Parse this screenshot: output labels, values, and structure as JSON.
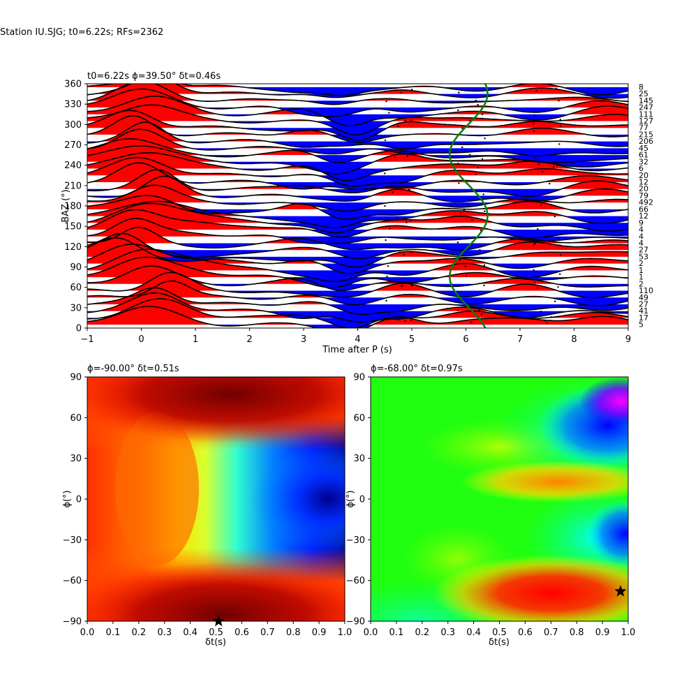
{
  "suptitle": "Station IU.SJG; t0=6.22s; RFs=2362",
  "chart_data": [
    {
      "type": "line",
      "panel": "receiver-functions",
      "title": "t0=6.22s ϕ=39.50° δt=0.46s",
      "xlabel": "Time after P (s)",
      "ylabel": "BAZ (°)",
      "xlim": [
        -1,
        9
      ],
      "ylim": [
        0,
        360
      ],
      "xticks": [
        "−1",
        "0",
        "1",
        "2",
        "3",
        "4",
        "5",
        "6",
        "7",
        "8",
        "9"
      ],
      "yticks": [
        "0",
        "30",
        "60",
        "90",
        "120",
        "150",
        "180",
        "210",
        "240",
        "270",
        "300",
        "330",
        "360"
      ],
      "counts": [
        "5",
        "17",
        "41",
        "27",
        "49",
        "110",
        "2",
        "1",
        "1",
        "2",
        "53",
        "27",
        "4",
        "4",
        "4",
        "9",
        "12",
        "66",
        "492",
        "79",
        "20",
        "12",
        "20",
        "6",
        "32",
        "61",
        "45",
        "206",
        "215",
        "77",
        "127",
        "111",
        "247",
        "145",
        "25",
        "8"
      ],
      "positive_color": "#ff0000",
      "negative_color": "#0000ff",
      "trace_color": "#000000",
      "moveout_color": "#008000"
    },
    {
      "type": "heatmap",
      "panel": "grid-search-left",
      "title": "ϕ=-90.00° δt=0.51s",
      "xlabel": "δt(s)",
      "ylabel": "ϕ(°)",
      "xlim": [
        0,
        1
      ],
      "ylim": [
        -90,
        90
      ],
      "xticks": [
        "0.0",
        "0.1",
        "0.2",
        "0.3",
        "0.4",
        "0.5",
        "0.6",
        "0.7",
        "0.8",
        "0.9",
        "1.0"
      ],
      "yticks": [
        "−90",
        "−60",
        "−30",
        "0",
        "30",
        "60",
        "90"
      ],
      "colormap": "hot-to-jet",
      "best_fit": {
        "dt": 0.51,
        "phi": -90
      }
    },
    {
      "type": "heatmap",
      "panel": "grid-search-right",
      "title": "ϕ=-68.00° δt=0.97s",
      "xlabel": "δt(s)",
      "ylabel": "ϕ(°)",
      "xlim": [
        0,
        1
      ],
      "ylim": [
        -90,
        90
      ],
      "xticks": [
        "0.0",
        "0.1",
        "0.2",
        "0.3",
        "0.4",
        "0.5",
        "0.6",
        "0.7",
        "0.8",
        "0.9",
        "1.0"
      ],
      "yticks": [
        "−90",
        "−60",
        "−30",
        "0",
        "30",
        "60",
        "90"
      ],
      "colormap": "hsv",
      "best_fit": {
        "dt": 0.97,
        "phi": -68
      }
    }
  ]
}
